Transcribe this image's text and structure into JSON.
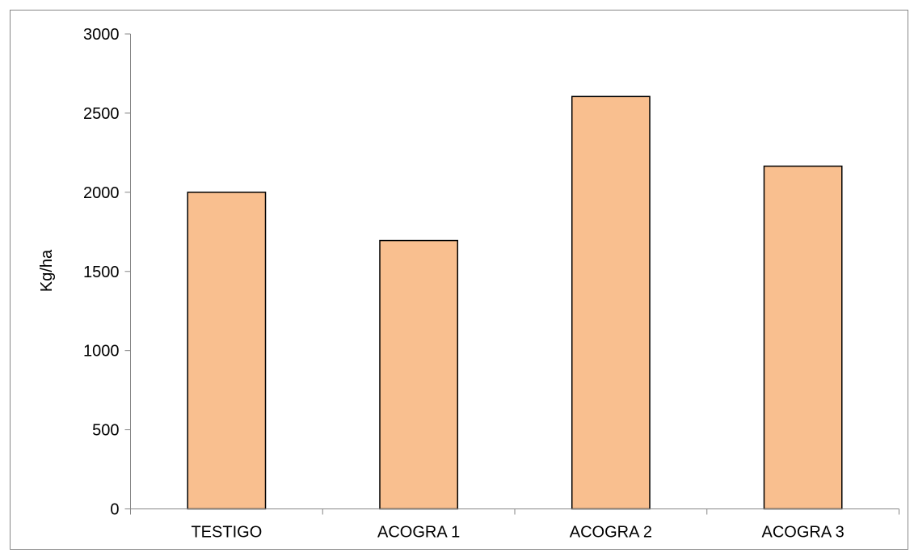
{
  "chart_data": {
    "type": "bar",
    "title": "",
    "xlabel": "",
    "ylabel": "Kg/ha",
    "categories": [
      "TESTIGO",
      "ACOGRA 1",
      "ACOGRA 2",
      "ACOGRA 3"
    ],
    "values": [
      2000,
      1695,
      2605,
      2165
    ],
    "ylim": [
      0,
      3000
    ],
    "yticks": [
      0,
      500,
      1000,
      1500,
      2000,
      2500,
      3000
    ],
    "grid": false,
    "legend": "none",
    "colors": {
      "bar_fill": "#F9BF8F",
      "bar_stroke": "#000000",
      "axis": "#868686",
      "frame": "#868686"
    }
  }
}
